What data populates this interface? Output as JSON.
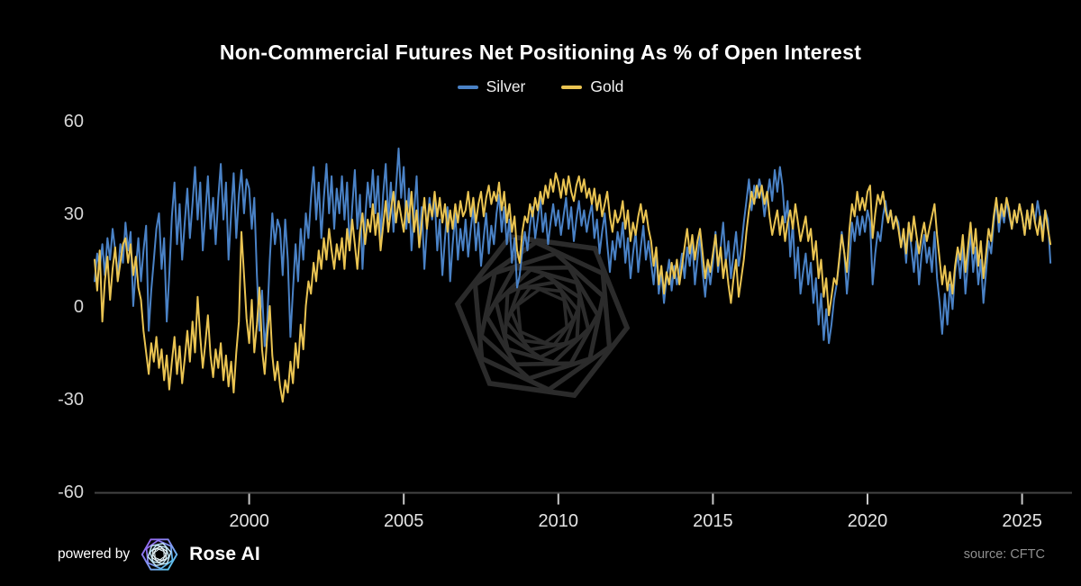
{
  "title": "Non-Commercial Futures Net Positioning As % of Open Interest",
  "footer": {
    "powered_by": "powered by",
    "brand": "Rose AI",
    "source": "source: CFTC"
  },
  "colors": {
    "background": "#000000",
    "silver_line": "#4a82c6",
    "gold_line": "#eac452",
    "axis_line": "#454545",
    "tick_mark": "#c9c9c9",
    "x_tick_label": "#e3e3e3",
    "y_tick_label": "#d6d6d6",
    "watermark": "#2b2b2b",
    "source_text": "#8f8f8f",
    "logo_purple": "#9a5cf0",
    "logo_cyan": "#4fd4ec"
  },
  "chart_data": {
    "type": "line",
    "title": "Non-Commercial Futures Net Positioning As % of Open Interest",
    "xlabel": "",
    "ylabel": "",
    "grid": false,
    "legend_position": "top-center",
    "x_start_year": 1995,
    "points_per_year": 12,
    "x_range": [
      1995,
      2026
    ],
    "ylim": [
      -60,
      60
    ],
    "x_ticks": [
      2000,
      2005,
      2010,
      2015,
      2020,
      2025
    ],
    "y_ticks": [
      60,
      30,
      0,
      -30,
      -60
    ],
    "series": [
      {
        "name": "Silver",
        "color": "#4a82c6",
        "values": [
          8,
          17,
          12,
          20,
          10,
          22,
          15,
          25,
          18,
          10,
          20,
          14,
          27,
          18,
          24,
          0,
          12,
          22,
          8,
          18,
          26,
          -8,
          5,
          15,
          25,
          30,
          12,
          22,
          -5,
          10,
          29,
          40,
          20,
          33,
          15,
          27,
          38,
          22,
          33,
          45,
          28,
          40,
          18,
          30,
          42,
          25,
          35,
          20,
          35,
          46,
          28,
          40,
          15,
          30,
          43,
          22,
          36,
          44,
          30,
          41,
          38,
          25,
          35,
          10,
          -8,
          5,
          -13,
          -5,
          15,
          30,
          20,
          28,
          25,
          10,
          28,
          15,
          -10,
          5,
          20,
          8,
          25,
          15,
          30,
          22,
          35,
          45,
          28,
          40,
          22,
          35,
          46,
          30,
          42,
          25,
          38,
          30,
          42,
          28,
          40,
          18,
          32,
          44,
          25,
          36,
          12,
          28,
          40,
          32,
          44,
          30,
          42,
          22,
          36,
          46,
          28,
          40,
          24,
          38,
          51,
          35,
          45,
          25,
          38,
          18,
          30,
          42,
          20,
          32,
          12,
          25,
          35,
          28,
          35,
          18,
          28,
          10,
          22,
          32,
          8,
          20,
          30,
          15,
          25,
          18,
          28,
          16,
          25,
          32,
          18,
          27,
          13,
          22,
          30,
          17,
          26,
          20,
          30,
          36,
          24,
          32,
          20,
          28,
          14,
          22,
          6,
          10,
          18,
          24,
          18,
          26,
          32,
          22,
          28,
          35,
          24,
          30,
          20,
          27,
          33,
          26,
          31,
          23,
          29,
          35,
          25,
          32,
          21,
          28,
          34,
          26,
          31,
          24,
          29,
          33,
          22,
          28,
          17,
          24,
          30,
          20,
          11,
          21,
          15,
          24,
          19,
          27,
          14,
          22,
          9,
          17,
          24,
          11,
          19,
          26,
          15,
          21,
          14,
          7,
          17,
          4,
          11,
          1,
          9,
          15,
          5,
          13,
          7,
          11,
          17,
          9,
          19,
          13,
          21,
          7,
          15,
          23,
          11,
          3,
          13,
          7,
          14,
          24,
          11,
          19,
          27,
          14,
          21,
          9,
          17,
          24,
          13,
          19,
          27,
          34,
          41,
          31,
          39,
          35,
          41,
          37,
          29,
          35,
          41,
          34,
          44,
          37,
          45,
          39,
          27,
          34,
          16,
          27,
          9,
          19,
          4,
          11,
          17,
          7,
          14,
          1,
          9,
          -6,
          4,
          -11,
          -1,
          -12,
          -6,
          2,
          7,
          14,
          24,
          17,
          4,
          14,
          27,
          21,
          29,
          23,
          29,
          24,
          31,
          27,
          7,
          17,
          24,
          21,
          29,
          34,
          27,
          31,
          25,
          29,
          27,
          19,
          24,
          14,
          27,
          19,
          11,
          21,
          7,
          17,
          23,
          14,
          19,
          11,
          24,
          9,
          1,
          -9,
          4,
          -6,
          7,
          -1,
          11,
          17,
          9,
          19,
          4,
          14,
          24,
          11,
          19,
          7,
          15,
          1,
          11,
          21,
          17,
          27,
          34,
          24,
          31,
          27,
          34,
          29,
          25,
          31,
          27,
          33,
          29,
          23,
          31,
          25,
          33,
          27,
          34,
          29,
          24,
          31,
          28,
          14
        ]
      },
      {
        "name": "Gold",
        "color": "#eac452",
        "values": [
          15,
          5,
          18,
          -5,
          8,
          16,
          2,
          12,
          19,
          8,
          14,
          20,
          22,
          14,
          20,
          10,
          16,
          6,
          2,
          -8,
          -15,
          -22,
          -12,
          -18,
          -10,
          -20,
          -14,
          -24,
          -16,
          -27,
          -18,
          -10,
          -22,
          -13,
          -25,
          -17,
          -8,
          -18,
          -5,
          -15,
          3,
          -10,
          -20,
          -12,
          -3,
          -16,
          -23,
          -14,
          -20,
          -12,
          -24,
          -16,
          -26,
          -18,
          -28,
          -15,
          -5,
          24,
          10,
          -4,
          -12,
          2,
          -15,
          -6,
          6,
          -14,
          -22,
          -10,
          0,
          -16,
          -24,
          -18,
          -26,
          -31,
          -24,
          -28,
          -18,
          -25,
          -12,
          -20,
          -6,
          -14,
          0,
          8,
          4,
          14,
          8,
          18,
          12,
          22,
          15,
          25,
          18,
          12,
          20,
          15,
          22,
          12,
          25,
          18,
          28,
          20,
          12,
          24,
          30,
          20,
          28,
          24,
          33,
          23,
          30,
          18,
          26,
          34,
          24,
          31,
          37,
          27,
          34,
          29,
          24,
          34,
          27,
          37,
          24,
          31,
          19,
          27,
          35,
          25,
          33,
          29,
          37,
          29,
          35,
          27,
          33,
          24,
          31,
          25,
          33,
          27,
          34,
          29,
          31,
          37,
          29,
          35,
          27,
          33,
          37,
          29,
          35,
          39,
          33,
          37,
          34,
          40,
          31,
          37,
          27,
          33,
          24,
          29,
          18,
          14,
          24,
          29,
          27,
          33,
          29,
          35,
          31,
          37,
          33,
          39,
          35,
          41,
          37,
          43,
          40,
          35,
          41,
          36,
          42,
          37,
          34,
          39,
          42,
          37,
          41,
          35,
          38,
          33,
          38,
          31,
          36,
          29,
          33,
          37,
          29,
          24,
          31,
          27,
          29,
          34,
          25,
          31,
          21,
          27,
          23,
          29,
          33,
          27,
          31,
          25,
          21,
          13,
          19,
          7,
          13,
          4,
          11,
          7,
          14,
          9,
          15,
          7,
          13,
          19,
          25,
          17,
          23,
          15,
          21,
          25,
          17,
          9,
          15,
          11,
          17,
          23,
          13,
          19,
          9,
          15,
          7,
          1,
          9,
          15,
          3,
          9,
          15,
          24,
          31,
          37,
          33,
          39,
          35,
          39,
          33,
          37,
          29,
          23,
          27,
          31,
          23,
          29,
          21,
          27,
          31,
          25,
          33,
          27,
          21,
          25,
          29,
          21,
          25,
          15,
          21,
          9,
          15,
          3,
          9,
          -3,
          3,
          9,
          7,
          15,
          23,
          17,
          11,
          25,
          33,
          29,
          37,
          31,
          35,
          31,
          37,
          39,
          22,
          30,
          36,
          33,
          37,
          31,
          27,
          31,
          25,
          29,
          25,
          19,
          25,
          17,
          27,
          21,
          29,
          23,
          17,
          23,
          27,
          21,
          25,
          29,
          33,
          23,
          15,
          7,
          13,
          5,
          11,
          4,
          13,
          19,
          15,
          23,
          11,
          19,
          27,
          17,
          25,
          13,
          21,
          9,
          17,
          25,
          21,
          29,
          35,
          27,
          33,
          29,
          35,
          31,
          25,
          31,
          27,
          33,
          29,
          23,
          31,
          25,
          33,
          27,
          23,
          29,
          21,
          31,
          25,
          20
        ]
      }
    ]
  }
}
